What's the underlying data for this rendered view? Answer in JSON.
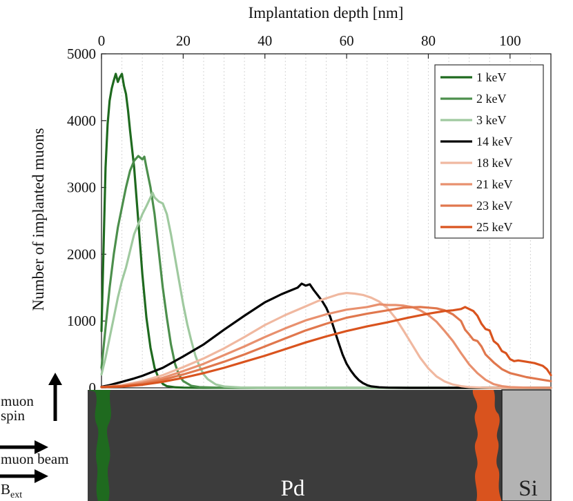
{
  "chart_data": {
    "type": "line",
    "title": "",
    "xlabel": "Implantation depth [nm]",
    "ylabel": "Number of implanted muons",
    "xlim": [
      0,
      110
    ],
    "ylim": [
      0,
      5000
    ],
    "xticks": [
      0,
      20,
      40,
      60,
      80,
      100
    ],
    "yticks": [
      0,
      1000,
      2000,
      3000,
      4000,
      5000
    ],
    "x_minor_grid_step": 5,
    "legend_position": "top-right",
    "series": [
      {
        "name": "1 keV",
        "color": "#1f6a1f",
        "points": [
          [
            0,
            850
          ],
          [
            0.5,
            2100
          ],
          [
            1,
            3300
          ],
          [
            1.5,
            3950
          ],
          [
            2,
            4300
          ],
          [
            2.5,
            4480
          ],
          [
            3,
            4600
          ],
          [
            3.5,
            4700
          ],
          [
            4,
            4580
          ],
          [
            4.5,
            4650
          ],
          [
            5,
            4700
          ],
          [
            5.5,
            4520
          ],
          [
            6,
            4400
          ],
          [
            6.5,
            4150
          ],
          [
            7,
            3850
          ],
          [
            8,
            3300
          ],
          [
            9,
            2500
          ],
          [
            10,
            1700
          ],
          [
            11,
            1050
          ],
          [
            12,
            600
          ],
          [
            13,
            300
          ],
          [
            14,
            140
          ],
          [
            15,
            60
          ],
          [
            16,
            25
          ],
          [
            18,
            8
          ],
          [
            20,
            3
          ],
          [
            25,
            0
          ],
          [
            110,
            0
          ]
        ]
      },
      {
        "name": "2 keV",
        "color": "#4c8f4c",
        "points": [
          [
            0,
            300
          ],
          [
            1,
            900
          ],
          [
            2,
            1500
          ],
          [
            3,
            2000
          ],
          [
            4,
            2400
          ],
          [
            5,
            2700
          ],
          [
            6,
            3000
          ],
          [
            7,
            3250
          ],
          [
            8,
            3400
          ],
          [
            9,
            3470
          ],
          [
            10,
            3420
          ],
          [
            10.5,
            3460
          ],
          [
            11,
            3300
          ],
          [
            12,
            3000
          ],
          [
            13,
            2600
          ],
          [
            14,
            2050
          ],
          [
            15,
            1500
          ],
          [
            16,
            1050
          ],
          [
            17,
            650
          ],
          [
            18,
            360
          ],
          [
            19,
            190
          ],
          [
            20,
            100
          ],
          [
            22,
            30
          ],
          [
            24,
            10
          ],
          [
            28,
            3
          ],
          [
            32,
            0
          ],
          [
            110,
            0
          ]
        ]
      },
      {
        "name": "3 keV",
        "color": "#9fc99f",
        "points": [
          [
            0,
            200
          ],
          [
            1,
            450
          ],
          [
            2,
            750
          ],
          [
            3,
            1050
          ],
          [
            4,
            1350
          ],
          [
            5,
            1600
          ],
          [
            6,
            1800
          ],
          [
            7,
            2050
          ],
          [
            8,
            2300
          ],
          [
            9,
            2450
          ],
          [
            10,
            2600
          ],
          [
            11,
            2720
          ],
          [
            12,
            2850
          ],
          [
            12.5,
            2920
          ],
          [
            13,
            2850
          ],
          [
            14,
            2790
          ],
          [
            15,
            2760
          ],
          [
            16,
            2600
          ],
          [
            17,
            2300
          ],
          [
            18,
            1950
          ],
          [
            19,
            1600
          ],
          [
            20,
            1250
          ],
          [
            21,
            950
          ],
          [
            22,
            700
          ],
          [
            23,
            480
          ],
          [
            24,
            320
          ],
          [
            25,
            200
          ],
          [
            26,
            130
          ],
          [
            28,
            50
          ],
          [
            30,
            20
          ],
          [
            34,
            5
          ],
          [
            40,
            0
          ],
          [
            110,
            0
          ]
        ]
      },
      {
        "name": "14 keV",
        "color": "#000000",
        "points": [
          [
            0,
            15
          ],
          [
            2,
            40
          ],
          [
            5,
            90
          ],
          [
            8,
            140
          ],
          [
            10,
            180
          ],
          [
            15,
            300
          ],
          [
            20,
            470
          ],
          [
            25,
            650
          ],
          [
            30,
            870
          ],
          [
            35,
            1080
          ],
          [
            40,
            1280
          ],
          [
            42,
            1340
          ],
          [
            44,
            1400
          ],
          [
            46,
            1450
          ],
          [
            48,
            1500
          ],
          [
            49,
            1560
          ],
          [
            50,
            1530
          ],
          [
            51,
            1550
          ],
          [
            52,
            1460
          ],
          [
            53,
            1380
          ],
          [
            54,
            1300
          ],
          [
            55,
            1200
          ],
          [
            56,
            1060
          ],
          [
            57,
            870
          ],
          [
            58,
            680
          ],
          [
            59,
            500
          ],
          [
            60,
            360
          ],
          [
            61,
            260
          ],
          [
            62,
            180
          ],
          [
            63,
            115
          ],
          [
            64,
            70
          ],
          [
            65,
            40
          ],
          [
            66,
            22
          ],
          [
            68,
            8
          ],
          [
            70,
            3
          ],
          [
            75,
            0
          ],
          [
            110,
            0
          ]
        ]
      },
      {
        "name": "18 keV",
        "color": "#f0b8a0",
        "points": [
          [
            0,
            10
          ],
          [
            5,
            40
          ],
          [
            10,
            100
          ],
          [
            15,
            190
          ],
          [
            20,
            310
          ],
          [
            25,
            440
          ],
          [
            30,
            590
          ],
          [
            35,
            760
          ],
          [
            40,
            940
          ],
          [
            45,
            1090
          ],
          [
            50,
            1220
          ],
          [
            53,
            1300
          ],
          [
            56,
            1360
          ],
          [
            58,
            1400
          ],
          [
            60,
            1420
          ],
          [
            62,
            1410
          ],
          [
            64,
            1390
          ],
          [
            66,
            1350
          ],
          [
            68,
            1290
          ],
          [
            70,
            1190
          ],
          [
            72,
            1040
          ],
          [
            74,
            850
          ],
          [
            76,
            650
          ],
          [
            78,
            450
          ],
          [
            80,
            290
          ],
          [
            82,
            170
          ],
          [
            84,
            95
          ],
          [
            86,
            50
          ],
          [
            88,
            25
          ],
          [
            90,
            10
          ],
          [
            93,
            3
          ],
          [
            96,
            0
          ],
          [
            110,
            0
          ]
        ]
      },
      {
        "name": "21 keV",
        "color": "#e8906e",
        "points": [
          [
            0,
            10
          ],
          [
            5,
            30
          ],
          [
            10,
            80
          ],
          [
            15,
            150
          ],
          [
            20,
            250
          ],
          [
            25,
            360
          ],
          [
            30,
            490
          ],
          [
            35,
            620
          ],
          [
            40,
            760
          ],
          [
            45,
            890
          ],
          [
            50,
            1010
          ],
          [
            55,
            1100
          ],
          [
            60,
            1170
          ],
          [
            65,
            1210
          ],
          [
            68,
            1250
          ],
          [
            70,
            1240
          ],
          [
            72,
            1240
          ],
          [
            74,
            1230
          ],
          [
            76,
            1210
          ],
          [
            78,
            1160
          ],
          [
            80,
            1090
          ],
          [
            82,
            990
          ],
          [
            84,
            850
          ],
          [
            86,
            700
          ],
          [
            88,
            520
          ],
          [
            90,
            350
          ],
          [
            92,
            220
          ],
          [
            94,
            120
          ],
          [
            96,
            55
          ],
          [
            98,
            25
          ],
          [
            100,
            10
          ],
          [
            104,
            3
          ],
          [
            110,
            0
          ]
        ]
      },
      {
        "name": "23 keV",
        "color": "#e0774d",
        "points": [
          [
            0,
            10
          ],
          [
            5,
            25
          ],
          [
            10,
            60
          ],
          [
            15,
            120
          ],
          [
            20,
            200
          ],
          [
            25,
            290
          ],
          [
            30,
            390
          ],
          [
            35,
            500
          ],
          [
            40,
            620
          ],
          [
            45,
            740
          ],
          [
            50,
            860
          ],
          [
            55,
            960
          ],
          [
            60,
            1050
          ],
          [
            65,
            1110
          ],
          [
            70,
            1160
          ],
          [
            74,
            1200
          ],
          [
            78,
            1210
          ],
          [
            80,
            1200
          ],
          [
            82,
            1190
          ],
          [
            84,
            1160
          ],
          [
            86,
            1100
          ],
          [
            88,
            1000
          ],
          [
            89,
            870
          ],
          [
            90,
            800
          ],
          [
            91,
            720
          ],
          [
            92,
            700
          ],
          [
            93,
            620
          ],
          [
            94,
            500
          ],
          [
            96,
            380
          ],
          [
            98,
            280
          ],
          [
            100,
            220
          ],
          [
            102,
            190
          ],
          [
            104,
            160
          ],
          [
            106,
            140
          ],
          [
            108,
            120
          ],
          [
            110,
            100
          ]
        ]
      },
      {
        "name": "25 keV",
        "color": "#d9531e",
        "points": [
          [
            0,
            10
          ],
          [
            5,
            20
          ],
          [
            10,
            45
          ],
          [
            15,
            90
          ],
          [
            20,
            150
          ],
          [
            25,
            220
          ],
          [
            30,
            300
          ],
          [
            35,
            390
          ],
          [
            40,
            480
          ],
          [
            45,
            580
          ],
          [
            50,
            680
          ],
          [
            55,
            770
          ],
          [
            60,
            850
          ],
          [
            65,
            920
          ],
          [
            70,
            980
          ],
          [
            75,
            1050
          ],
          [
            80,
            1110
          ],
          [
            84,
            1150
          ],
          [
            86,
            1160
          ],
          [
            88,
            1180
          ],
          [
            89,
            1210
          ],
          [
            90,
            1180
          ],
          [
            91,
            1150
          ],
          [
            92,
            1080
          ],
          [
            93,
            960
          ],
          [
            94,
            880
          ],
          [
            95,
            860
          ],
          [
            96,
            700
          ],
          [
            97,
            650
          ],
          [
            98,
            550
          ],
          [
            99,
            520
          ],
          [
            100,
            430
          ],
          [
            101,
            400
          ],
          [
            102,
            410
          ],
          [
            104,
            390
          ],
          [
            106,
            370
          ],
          [
            108,
            330
          ],
          [
            109,
            280
          ],
          [
            110,
            190
          ]
        ]
      }
    ]
  },
  "schematic": {
    "spin_label_line1": "muon",
    "spin_label_line2": "spin",
    "beam_label": "muon beam",
    "field_label_main": "B",
    "field_label_sub": "ext",
    "pd_label": "Pd",
    "si_label": "Si",
    "colors": {
      "pd": "#3c3c3c",
      "si": "#b3b3b3",
      "front_layer": "#1f6a1f",
      "back_layer": "#d9531e"
    }
  }
}
